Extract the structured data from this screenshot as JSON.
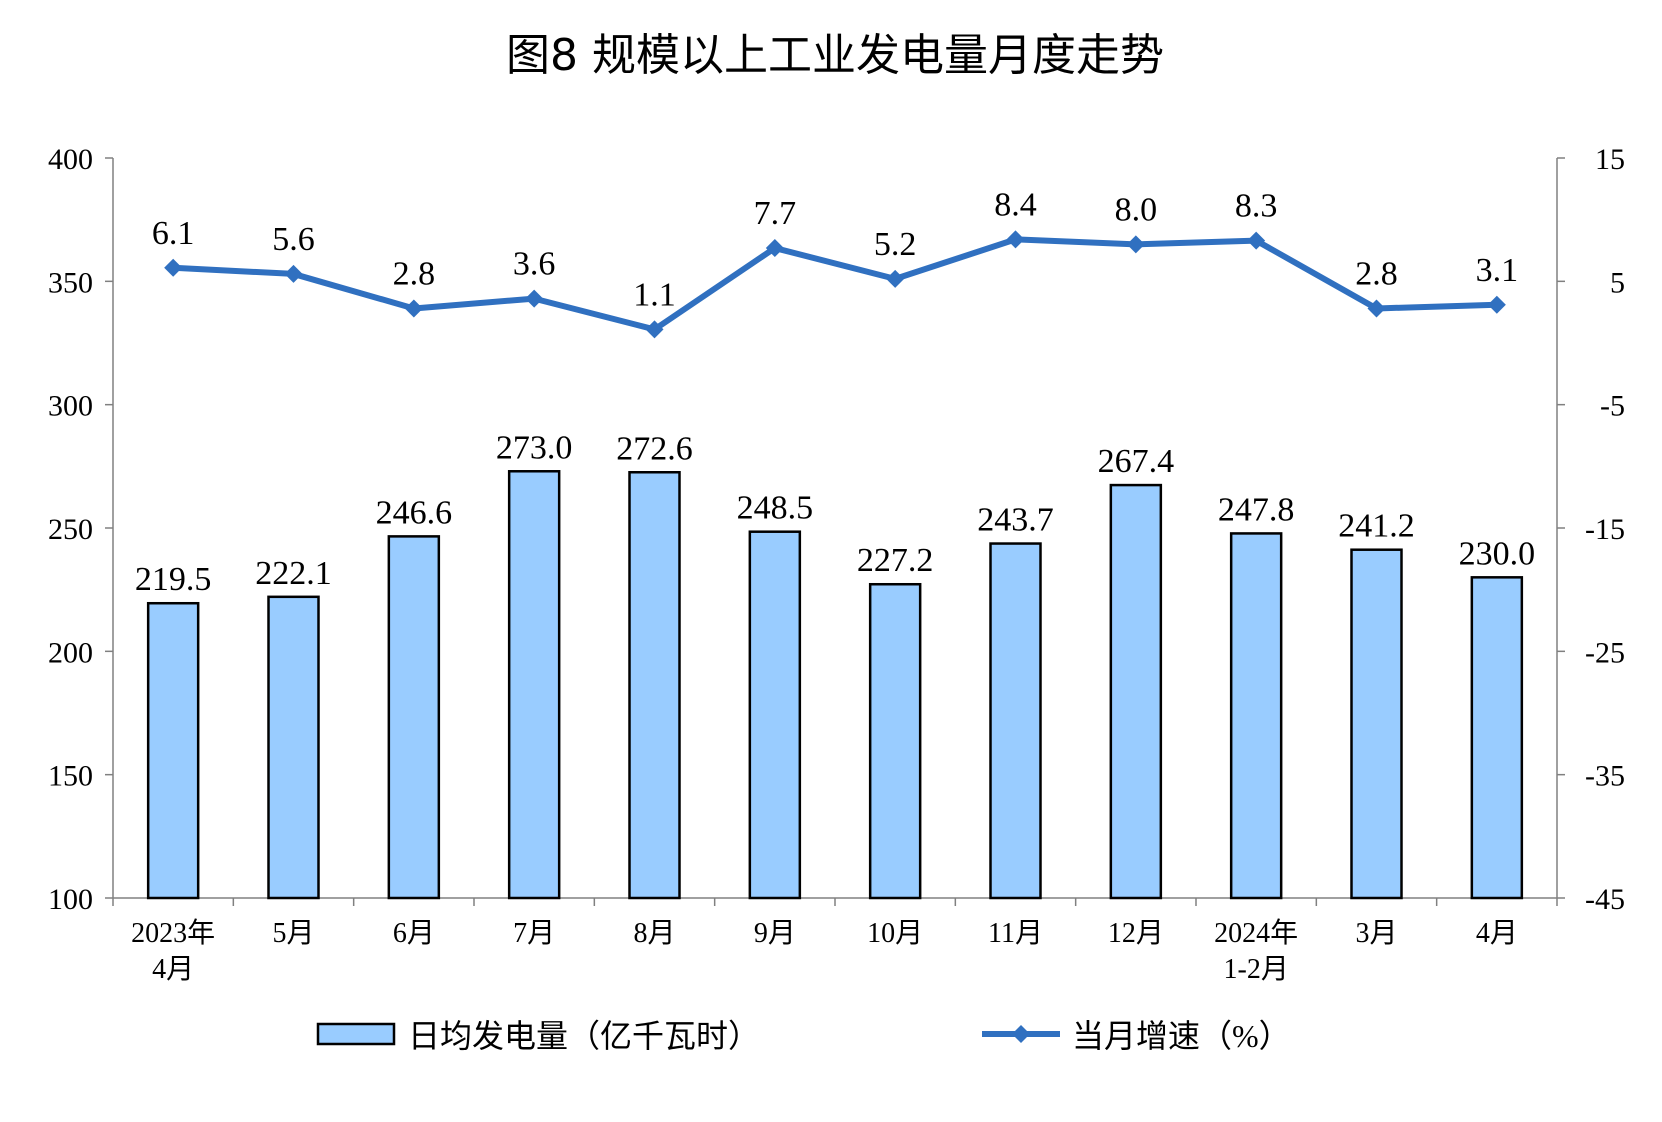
{
  "chart_data": {
    "type": "bar",
    "title": "图8 规模以上工业发电量月度走势",
    "categories": [
      [
        "2023年",
        "4月"
      ],
      [
        "5月"
      ],
      [
        "6月"
      ],
      [
        "7月"
      ],
      [
        "8月"
      ],
      [
        "9月"
      ],
      [
        "10月"
      ],
      [
        "11月"
      ],
      [
        "12月"
      ],
      [
        "2024年",
        "1-2月"
      ],
      [
        "3月"
      ],
      [
        "4月"
      ]
    ],
    "series": [
      {
        "name": "日均发电量（亿千瓦时）",
        "type": "bar",
        "axis": "left",
        "values": [
          219.5,
          222.1,
          246.6,
          273.0,
          272.6,
          248.5,
          227.2,
          243.7,
          267.4,
          247.8,
          241.2,
          230.0
        ],
        "labels": [
          "219.5",
          "222.1",
          "246.6",
          "273.0",
          "272.6",
          "248.5",
          "227.2",
          "243.7",
          "267.4",
          "247.8",
          "241.2",
          "230.0"
        ],
        "color": "#99CCFF"
      },
      {
        "name": "当月增速（%）",
        "type": "line",
        "axis": "right",
        "values": [
          6.1,
          5.6,
          2.8,
          3.6,
          1.1,
          7.7,
          5.2,
          8.4,
          8.0,
          8.3,
          2.8,
          3.1
        ],
        "labels": [
          "6.1",
          "5.6",
          "2.8",
          "3.6",
          "1.1",
          "7.7",
          "5.2",
          "8.4",
          "8.0",
          "8.3",
          "2.8",
          "3.1"
        ],
        "color": "#3070C0"
      }
    ],
    "ylim_left": [
      100,
      400
    ],
    "yticks_left": [
      100,
      150,
      200,
      250,
      300,
      350,
      400
    ],
    "ylim_right": [
      -45,
      15
    ],
    "yticks_right": [
      -45,
      -35,
      -25,
      -15,
      -5,
      5,
      15
    ],
    "grid": false,
    "legend_position": "bottom"
  }
}
